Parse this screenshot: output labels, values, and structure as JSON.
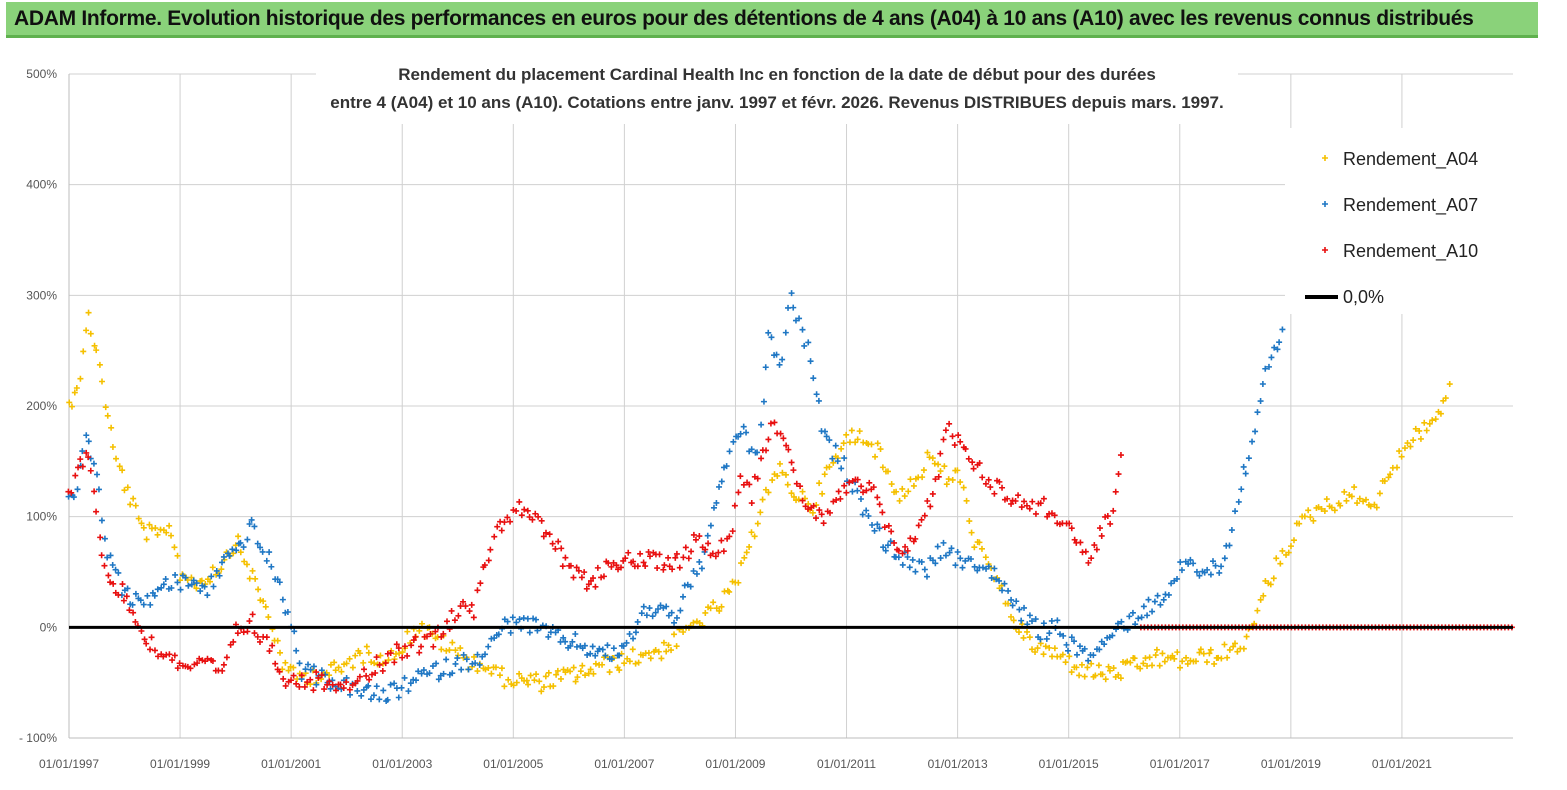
{
  "banner": {
    "text": "ADAM Informe. Evolution historique des performances en euros pour des détentions de 4 ans (A04) à 10 ans (A10) avec les revenus connus distribués"
  },
  "chart_data": {
    "type": "scatter",
    "title_lines": [
      "Rendement du placement Cardinal Health Inc en fonction de la date de début pour des durées",
      "entre 4 (A04) et 10 ans (A10). Cotations entre janv. 1997 et févr. 2026. Revenus DISTRIBUES depuis mars. 1997."
    ],
    "x_range": [
      1997.0,
      2023.0
    ],
    "ylim": [
      -100,
      500
    ],
    "y_ticks": [
      -100,
      0,
      100,
      200,
      300,
      400,
      500
    ],
    "y_tick_labels": [
      "- 100%",
      "0%",
      "100%",
      "200%",
      "300%",
      "400%",
      "500%"
    ],
    "x_ticks": [
      1997,
      1999,
      2001,
      2003,
      2005,
      2007,
      2009,
      2011,
      2013,
      2015,
      2017,
      2019,
      2021
    ],
    "x_tick_labels": [
      "01/01/1997",
      "01/01/1999",
      "01/01/2001",
      "01/01/2003",
      "01/01/2005",
      "01/01/2007",
      "01/01/2009",
      "01/01/2011",
      "01/01/2013",
      "01/01/2015",
      "01/01/2017",
      "01/01/2019",
      "01/01/2021"
    ],
    "marker": "+",
    "series": [
      {
        "name": "Rendement_A04",
        "color": "#f5c000",
        "x": [
          1997.0,
          1997.2,
          1997.35,
          1997.5,
          1997.8,
          1998.0,
          1998.3,
          1998.6,
          1998.8,
          1999.0,
          1999.3,
          1999.6,
          1999.8,
          2000.0,
          2000.3,
          2000.6,
          2000.9,
          2001.2,
          2001.5,
          2001.9,
          2002.2,
          2002.5,
          2002.8,
          2003.0,
          2003.3,
          2003.6,
          2003.9,
          2004.2,
          2004.5,
          2004.8,
          2005.1,
          2005.5,
          2005.9,
          2006.3,
          2006.6,
          2007.0,
          2007.3,
          2007.7,
          2008.0,
          2008.3,
          2008.6,
          2008.9,
          2009.2,
          2009.5,
          2009.8,
          2010.1,
          2010.4,
          2010.6,
          2010.8,
          2011.0,
          2011.3,
          2011.6,
          2011.9,
          2012.2,
          2012.5,
          2012.8,
          2013.0,
          2013.3,
          2013.6,
          2013.9,
          2014.2,
          2014.5,
          2014.8,
          2015.1,
          2015.4,
          2015.8,
          2016.2,
          2016.6,
          2017.0,
          2017.3,
          2017.7,
          2018.0,
          2018.3,
          2018.5,
          2018.8,
          2019.0,
          2019.3,
          2019.6,
          2019.9,
          2020.2,
          2020.5,
          2020.8,
          2021.0,
          2021.3,
          2021.6,
          2021.8,
          2021.9
        ],
        "values": [
          200,
          230,
          280,
          250,
          160,
          130,
          90,
          80,
          95,
          50,
          40,
          50,
          60,
          80,
          45,
          10,
          -40,
          -45,
          -42,
          -38,
          -25,
          -25,
          -28,
          -15,
          0,
          -10,
          -20,
          -30,
          -35,
          -45,
          -48,
          -50,
          -45,
          -40,
          -35,
          -30,
          -25,
          -20,
          -10,
          5,
          15,
          30,
          60,
          120,
          140,
          120,
          110,
          135,
          150,
          170,
          175,
          155,
          120,
          130,
          155,
          135,
          140,
          80,
          50,
          20,
          -10,
          -20,
          -25,
          -35,
          -40,
          -42,
          -35,
          -28,
          -30,
          -28,
          -25,
          -20,
          -5,
          30,
          60,
          80,
          100,
          110,
          115,
          120,
          110,
          140,
          160,
          175,
          190,
          205,
          235
        ]
      },
      {
        "name": "Rendement_A07",
        "color": "#1f77c4",
        "x": [
          1997.0,
          1997.15,
          1997.3,
          1997.45,
          1997.7,
          1998.0,
          1998.3,
          1998.6,
          1998.9,
          1999.2,
          1999.5,
          1999.8,
          2000.0,
          2000.3,
          2000.6,
          2000.9,
          2001.2,
          2001.5,
          2001.8,
          2002.1,
          2002.4,
          2002.7,
          2003.0,
          2003.3,
          2003.6,
          2003.9,
          2004.2,
          2004.5,
          2004.8,
          2005.1,
          2005.4,
          2005.8,
          2006.2,
          2006.6,
          2007.0,
          2007.3,
          2007.6,
          2007.9,
          2008.1,
          2008.4,
          2008.7,
          2008.9,
          2009.1,
          2009.4,
          2009.6,
          2009.8,
          2010.0,
          2010.3,
          2010.6,
          2010.9,
          2011.2,
          2011.5,
          2011.8,
          2012.1,
          2012.4,
          2012.7,
          2013.0,
          2013.3,
          2013.6,
          2013.9,
          2014.2,
          2014.5,
          2014.8,
          2015.1,
          2015.3,
          2015.6,
          2015.9,
          2016.2,
          2016.5,
          2016.8,
          2017.1,
          2017.4,
          2017.7,
          2017.9,
          2018.1,
          2018.3,
          2018.5,
          2018.7,
          2018.9
        ],
        "values": [
          110,
          130,
          175,
          150,
          70,
          30,
          20,
          35,
          40,
          40,
          35,
          60,
          70,
          90,
          60,
          20,
          -40,
          -45,
          -50,
          -55,
          -60,
          -62,
          -55,
          -45,
          -40,
          -35,
          -30,
          -25,
          0,
          5,
          0,
          -10,
          -15,
          -25,
          -20,
          10,
          20,
          10,
          30,
          60,
          120,
          160,
          180,
          150,
          270,
          230,
          300,
          250,
          170,
          150,
          120,
          90,
          70,
          60,
          50,
          70,
          60,
          60,
          50,
          30,
          10,
          -5,
          0,
          -20,
          -25,
          -18,
          0,
          10,
          20,
          35,
          60,
          50,
          55,
          80,
          130,
          160,
          220,
          250,
          270
        ]
      },
      {
        "name": "Rendement_A10",
        "color": "#e81010",
        "x": [
          1997.0,
          1997.15,
          1997.3,
          1997.45,
          1997.6,
          1997.8,
          1998.0,
          1998.3,
          1998.6,
          1998.9,
          1999.2,
          1999.5,
          1999.8,
          2000.0,
          2000.3,
          2000.6,
          2000.9,
          2001.2,
          2001.5,
          2001.8,
          2002.1,
          2002.4,
          2002.7,
          2003.0,
          2003.3,
          2003.6,
          2003.9,
          2004.1,
          2004.3,
          2004.5,
          2004.7,
          2004.9,
          2005.1,
          2005.4,
          2005.7,
          2006.0,
          2006.4,
          2006.8,
          2007.2,
          2007.6,
          2008.0,
          2008.3,
          2008.6,
          2008.9,
          2009.1,
          2009.3,
          2009.5,
          2009.7,
          2009.9,
          2010.1,
          2010.3,
          2010.6,
          2010.9,
          2011.2,
          2011.5,
          2011.8,
          2012.1,
          2012.4,
          2012.6,
          2012.8,
          2013.0,
          2013.3,
          2013.6,
          2013.9,
          2014.2,
          2014.5,
          2014.8,
          2015.0,
          2015.2,
          2015.4,
          2015.6,
          2015.8,
          2016.0
        ],
        "values": [
          120,
          140,
          160,
          130,
          60,
          40,
          30,
          -5,
          -20,
          -30,
          -35,
          -35,
          -40,
          -5,
          5,
          -20,
          -45,
          -50,
          -48,
          -50,
          -48,
          -40,
          -30,
          -20,
          -15,
          -10,
          10,
          25,
          15,
          60,
          90,
          100,
          110,
          95,
          80,
          50,
          40,
          60,
          60,
          60,
          60,
          80,
          70,
          80,
          140,
          120,
          160,
          190,
          160,
          130,
          110,
          100,
          120,
          130,
          120,
          80,
          70,
          100,
          130,
          180,
          170,
          150,
          130,
          120,
          110,
          110,
          100,
          95,
          70,
          60,
          90,
          100,
          180
        ]
      },
      {
        "name": "Rendement_A10",
        "role": "zero-band",
        "color": "#e81010",
        "x_from": 2016.3,
        "x_to": 2023.0,
        "value": 0
      }
    ],
    "legend": [
      {
        "label": "Rendement_A04",
        "color": "#f5c000",
        "style": "marker"
      },
      {
        "label": "Rendement_A07",
        "color": "#1f77c4",
        "style": "marker"
      },
      {
        "label": "Rendement_A10",
        "color": "#e81010",
        "style": "marker"
      },
      {
        "label": "0,0%",
        "color": "#000000",
        "style": "line"
      }
    ],
    "legend_position": "top-right",
    "grid": "horizontal and vertical"
  }
}
